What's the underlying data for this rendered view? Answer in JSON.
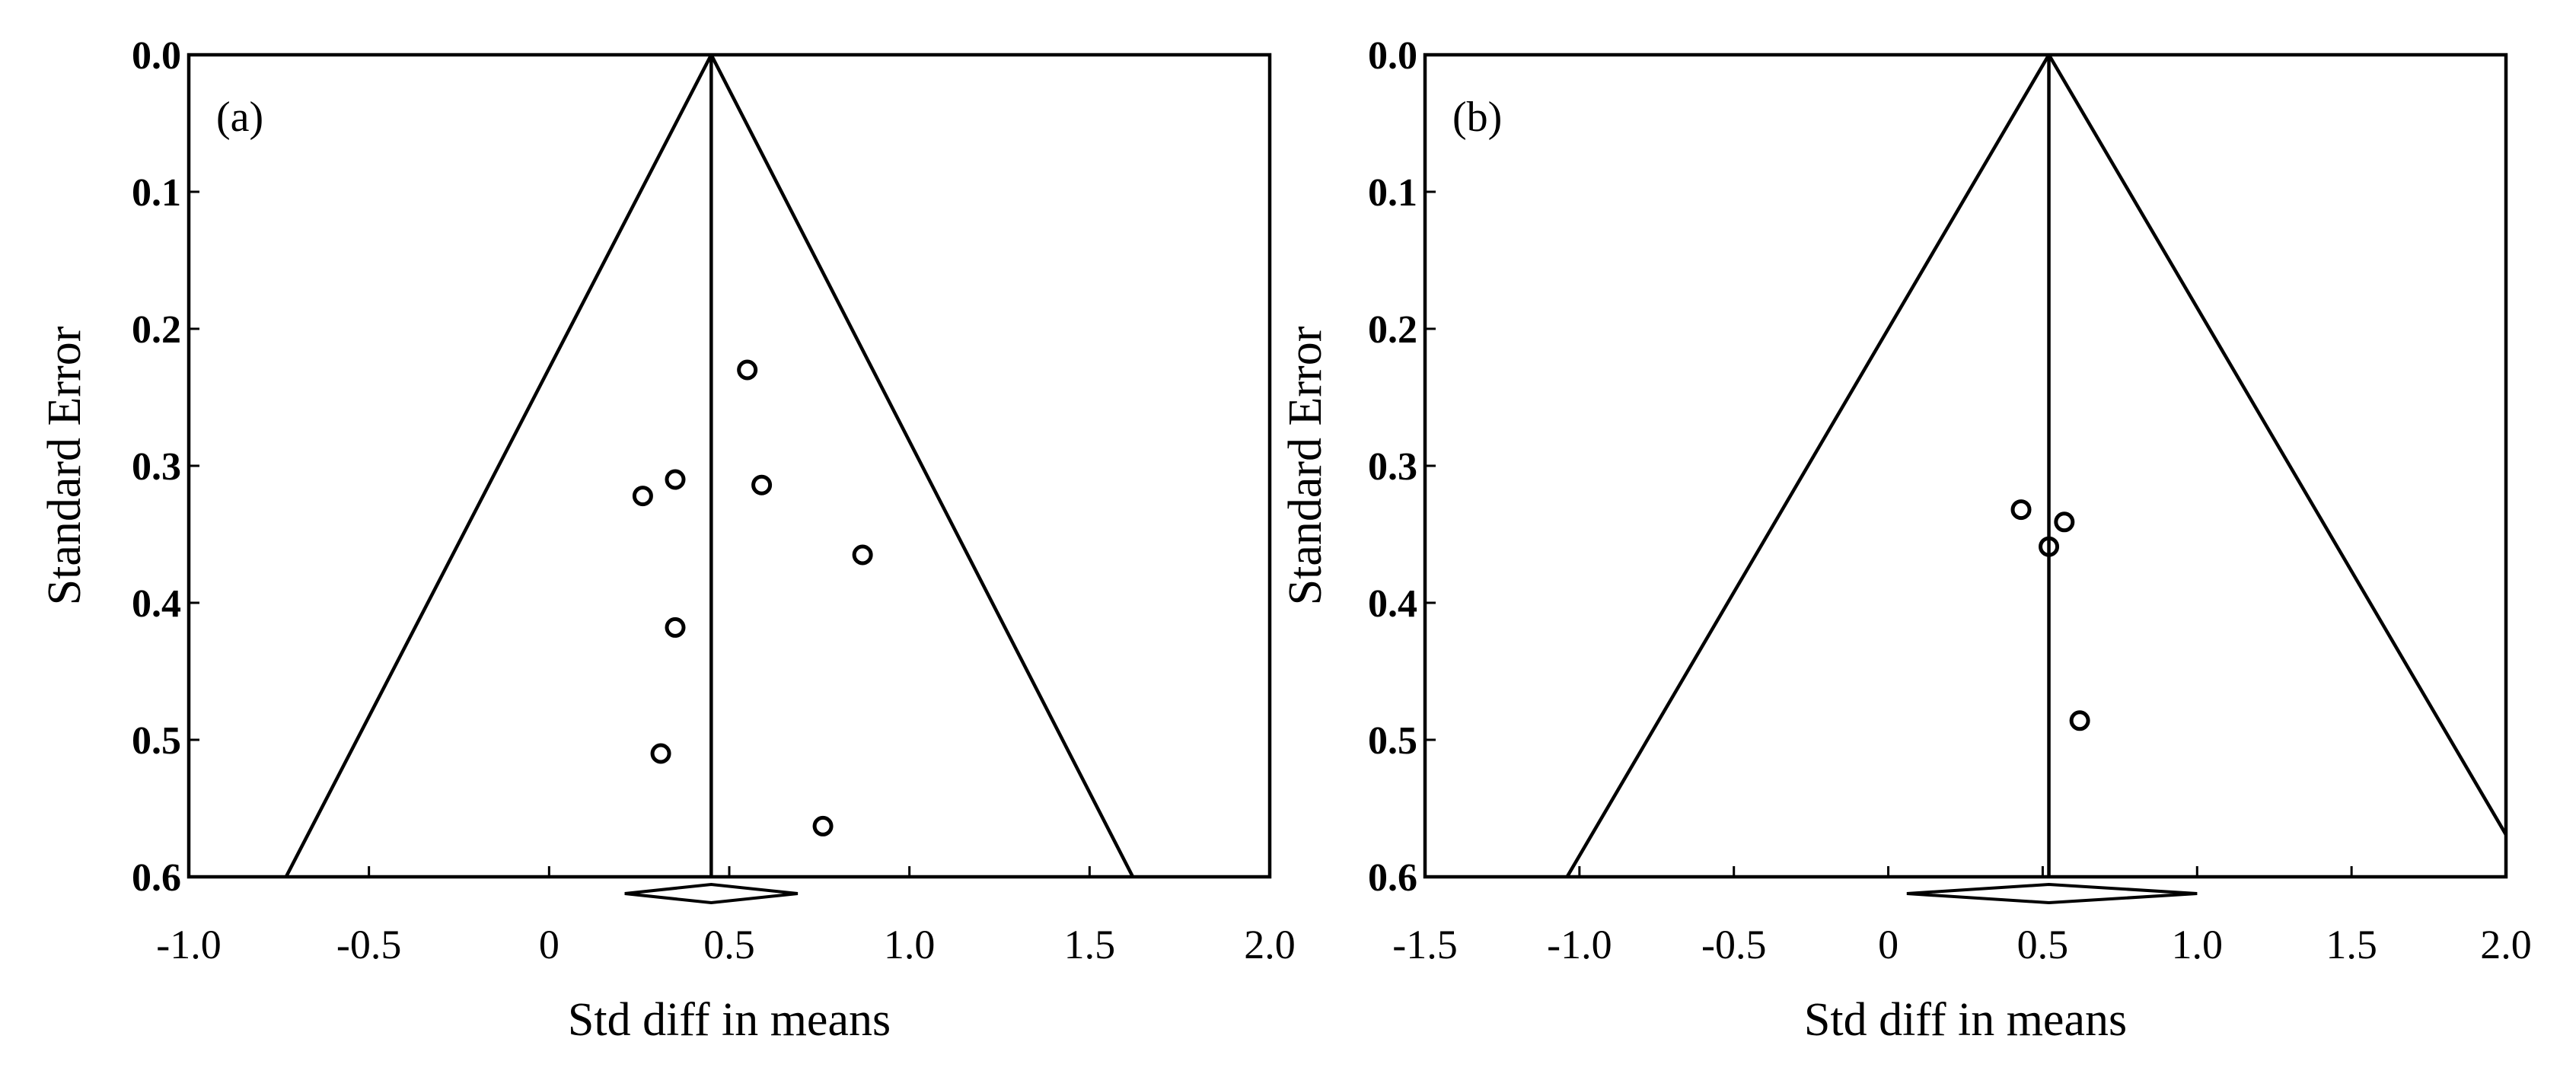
{
  "chart_data": [
    {
      "type": "scatter",
      "panel_label": "(a)",
      "xlabel": "Std diff in means",
      "ylabel": "Standard Error",
      "xlim": [
        -1.0,
        2.0
      ],
      "ylim": [
        0.0,
        0.6
      ],
      "y_inverted": true,
      "xticks": [
        "-1.0",
        "-0.5",
        "0",
        "0.5",
        "1.0",
        "1.5",
        "2.0"
      ],
      "xtick_values": [
        -1.0,
        -0.5,
        0,
        0.5,
        1.0,
        1.5,
        2.0
      ],
      "yticks": [
        "0.0",
        "0.1",
        "0.2",
        "0.3",
        "0.4",
        "0.5",
        "0.6"
      ],
      "ytick_values": [
        0.0,
        0.1,
        0.2,
        0.3,
        0.4,
        0.5,
        0.6
      ],
      "pooled_effect": 0.45,
      "funnel_base": [
        -0.73,
        1.62
      ],
      "diamond": [
        0.21,
        0.45,
        0.69
      ],
      "points": [
        {
          "x": 0.55,
          "y": 0.23
        },
        {
          "x": 0.35,
          "y": 0.31
        },
        {
          "x": 0.26,
          "y": 0.322
        },
        {
          "x": 0.59,
          "y": 0.314
        },
        {
          "x": 0.87,
          "y": 0.365
        },
        {
          "x": 0.35,
          "y": 0.418
        },
        {
          "x": 0.31,
          "y": 0.51
        },
        {
          "x": 0.76,
          "y": 0.563
        }
      ]
    },
    {
      "type": "scatter",
      "panel_label": "(b)",
      "xlabel": "Std diff in means",
      "ylabel": "Standard Error",
      "xlim": [
        -1.5,
        2.0
      ],
      "ylim": [
        0.0,
        0.6
      ],
      "y_inverted": true,
      "xticks": [
        "-1.5",
        "-1.0",
        "-0.5",
        "0",
        "0.5",
        "1.0",
        "1.5",
        "2.0"
      ],
      "xtick_values": [
        -1.5,
        -1.0,
        -0.5,
        0,
        0.5,
        1.0,
        1.5,
        2.0
      ],
      "yticks": [
        "0.0",
        "0.1",
        "0.2",
        "0.3",
        "0.4",
        "0.5",
        "0.6"
      ],
      "ytick_values": [
        0.0,
        0.1,
        0.2,
        0.3,
        0.4,
        0.5,
        0.6
      ],
      "pooled_effect": 0.52,
      "funnel_base": [
        -1.04,
        2.08
      ],
      "diamond": [
        0.06,
        0.52,
        1.0
      ],
      "points": [
        {
          "x": 0.43,
          "y": 0.332
        },
        {
          "x": 0.57,
          "y": 0.341
        },
        {
          "x": 0.52,
          "y": 0.359
        },
        {
          "x": 0.62,
          "y": 0.486
        }
      ]
    }
  ]
}
